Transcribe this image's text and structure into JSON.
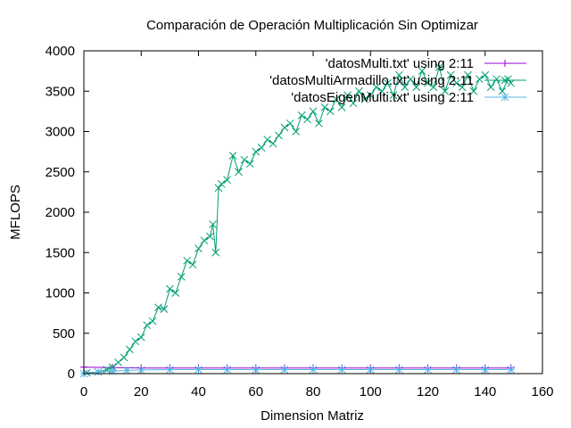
{
  "chart_data": {
    "type": "line",
    "title": "Comparación de Operación Multiplicación Sin Optimizar",
    "xlabel": "Dimension Matriz",
    "ylabel": "MFLOPS",
    "xlim": [
      0,
      160
    ],
    "ylim": [
      0,
      4000
    ],
    "xticks": [
      0,
      20,
      40,
      60,
      80,
      100,
      120,
      140,
      160
    ],
    "yticks": [
      0,
      500,
      1000,
      1500,
      2000,
      2500,
      3000,
      3500,
      4000
    ],
    "grid": false,
    "legend_position": "top-right",
    "series": [
      {
        "name": "'datosMulti.txt' using 2:11",
        "color": "#9400d3",
        "marker": "plus",
        "x": [
          0,
          10,
          20,
          30,
          40,
          50,
          60,
          70,
          80,
          90,
          100,
          110,
          120,
          130,
          140,
          149
        ],
        "y": [
          80,
          75,
          70,
          70,
          70,
          70,
          70,
          70,
          70,
          70,
          70,
          70,
          70,
          70,
          70,
          70
        ]
      },
      {
        "name": "'datosMultiArmadillo.txt' using 2:11",
        "color": "#009e73",
        "marker": "cross",
        "x": [
          1,
          5,
          8,
          10,
          12,
          14,
          16,
          18,
          20,
          22,
          24,
          26,
          28,
          30,
          32,
          34,
          36,
          38,
          40,
          42,
          44,
          45,
          46,
          47,
          48,
          50,
          52,
          54,
          56,
          58,
          60,
          62,
          64,
          66,
          68,
          70,
          72,
          74,
          76,
          78,
          80,
          82,
          84,
          86,
          88,
          90,
          92,
          94,
          96,
          98,
          100,
          102,
          104,
          106,
          108,
          110,
          112,
          114,
          116,
          118,
          120,
          122,
          124,
          126,
          128,
          130,
          132,
          134,
          136,
          138,
          140,
          142,
          144,
          146,
          148,
          149
        ],
        "y": [
          10,
          20,
          50,
          80,
          140,
          200,
          300,
          400,
          450,
          600,
          650,
          820,
          800,
          1050,
          1000,
          1200,
          1400,
          1350,
          1550,
          1650,
          1700,
          1850,
          1500,
          2300,
          2350,
          2400,
          2700,
          2500,
          2650,
          2600,
          2750,
          2800,
          2900,
          2850,
          2950,
          3050,
          3100,
          3000,
          3200,
          3150,
          3250,
          3100,
          3300,
          3250,
          3400,
          3300,
          3450,
          3350,
          3500,
          3400,
          3450,
          3550,
          3500,
          3600,
          3450,
          3700,
          3550,
          3650,
          3550,
          3750,
          3600,
          3550,
          3800,
          3500,
          3700,
          3600,
          3550,
          3700,
          3500,
          3650,
          3700,
          3550,
          3650,
          3500,
          3650,
          3600
        ]
      },
      {
        "name": "'datosEigenMulti.txt' using 2:11",
        "color": "#56b4e9",
        "marker": "star",
        "x": [
          0,
          5,
          10,
          15,
          20,
          30,
          40,
          50,
          60,
          70,
          80,
          90,
          100,
          110,
          120,
          130,
          140,
          149
        ],
        "y": [
          0,
          20,
          30,
          40,
          45,
          50,
          50,
          50,
          50,
          50,
          50,
          50,
          50,
          50,
          50,
          50,
          50,
          50
        ]
      }
    ]
  }
}
